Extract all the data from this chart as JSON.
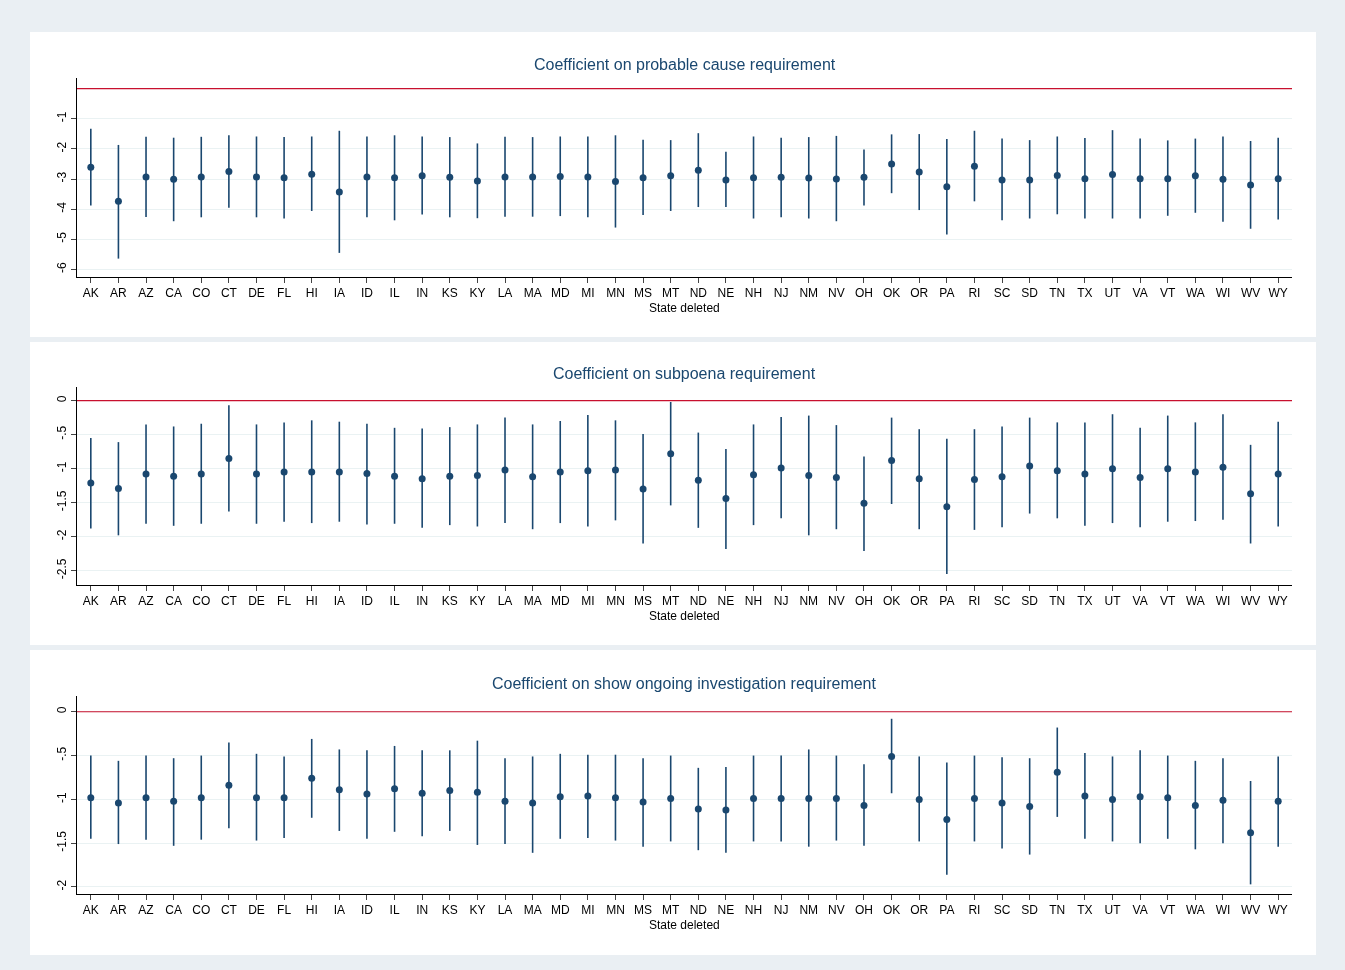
{
  "chart_data": [
    {
      "type": "scatter",
      "title": "Coefficient on probable cause requirement",
      "xlabel": "State deleted",
      "categories": [
        "AK",
        "AR",
        "AZ",
        "CA",
        "CO",
        "CT",
        "DE",
        "FL",
        "HI",
        "IA",
        "ID",
        "IL",
        "IN",
        "KS",
        "KY",
        "LA",
        "MA",
        "MD",
        "MI",
        "MN",
        "MS",
        "MT",
        "ND",
        "NE",
        "NH",
        "NJ",
        "NM",
        "NV",
        "OH",
        "OK",
        "OR",
        "PA",
        "RI",
        "SC",
        "SD",
        "TN",
        "TX",
        "UT",
        "VA",
        "VT",
        "WA",
        "WI",
        "WV",
        "WY"
      ],
      "ylim": [
        -6.25,
        0.35
      ],
      "yticks": [
        -6,
        -5,
        -4,
        -3,
        -2,
        -1
      ],
      "grid": "y",
      "marker": "circle",
      "ref_lines": [
        {
          "axis": "y",
          "value": 0,
          "color": "#c8102e"
        }
      ],
      "series": [
        {
          "color": "#1a476f",
          "values": [
            -2.61,
            -3.74,
            -2.93,
            -3.01,
            -2.93,
            -2.75,
            -2.93,
            -2.96,
            -2.84,
            -3.43,
            -2.93,
            -2.96,
            -2.89,
            -2.94,
            -3.07,
            -2.93,
            -2.93,
            -2.92,
            -2.93,
            -3.08,
            -2.96,
            -2.89,
            -2.71,
            -3.03,
            -2.96,
            -2.94,
            -2.97,
            -3.0,
            -2.94,
            -2.5,
            -2.77,
            -3.26,
            -2.58,
            -3.03,
            -3.03,
            -2.88,
            -2.99,
            -2.85,
            -2.99,
            -2.99,
            -2.89,
            -3.01,
            -3.2,
            -2.99
          ],
          "errors": [
            [
              -3.88,
              -1.33
            ],
            [
              -5.64,
              -1.87
            ],
            [
              -4.26,
              -1.6
            ],
            [
              -4.4,
              -1.63
            ],
            [
              -4.27,
              -1.6
            ],
            [
              -3.95,
              -1.55
            ],
            [
              -4.27,
              -1.59
            ],
            [
              -4.31,
              -1.61
            ],
            [
              -4.06,
              -1.59
            ],
            [
              -5.45,
              -1.4
            ],
            [
              -4.27,
              -1.59
            ],
            [
              -4.37,
              -1.55
            ],
            [
              -4.18,
              -1.59
            ],
            [
              -4.27,
              -1.61
            ],
            [
              -4.3,
              -1.82
            ],
            [
              -4.25,
              -1.6
            ],
            [
              -4.25,
              -1.61
            ],
            [
              -4.23,
              -1.59
            ],
            [
              -4.27,
              -1.59
            ],
            [
              -4.61,
              -1.55
            ],
            [
              -4.19,
              -1.7
            ],
            [
              -4.06,
              -1.71
            ],
            [
              -3.93,
              -1.48
            ],
            [
              -3.93,
              -2.1
            ],
            [
              -4.31,
              -1.59
            ],
            [
              -4.27,
              -1.63
            ],
            [
              -4.31,
              -1.61
            ],
            [
              -4.4,
              -1.57
            ],
            [
              -3.88,
              -2.02
            ],
            [
              -3.47,
              -1.52
            ],
            [
              -4.03,
              -1.51
            ],
            [
              -4.84,
              -1.67
            ],
            [
              -3.74,
              -1.4
            ],
            [
              -4.37,
              -1.66
            ],
            [
              -4.31,
              -1.71
            ],
            [
              -4.17,
              -1.59
            ],
            [
              -4.31,
              -1.64
            ],
            [
              -4.31,
              -1.38
            ],
            [
              -4.31,
              -1.66
            ],
            [
              -4.22,
              -1.72
            ],
            [
              -4.12,
              -1.66
            ],
            [
              -4.42,
              -1.59
            ],
            [
              -4.65,
              -1.74
            ],
            [
              -4.34,
              -1.63
            ]
          ]
        }
      ]
    },
    {
      "type": "scatter",
      "title": "Coefficient on subpoena requirement",
      "xlabel": "State deleted",
      "categories": [
        "AK",
        "AR",
        "AZ",
        "CA",
        "CO",
        "CT",
        "DE",
        "FL",
        "HI",
        "IA",
        "ID",
        "IL",
        "IN",
        "KS",
        "KY",
        "LA",
        "MA",
        "MD",
        "MI",
        "MN",
        "MS",
        "MT",
        "ND",
        "NE",
        "NH",
        "NJ",
        "NM",
        "NV",
        "OH",
        "OK",
        "OR",
        "PA",
        "RI",
        "SC",
        "SD",
        "TN",
        "TX",
        "UT",
        "VA",
        "VT",
        "WA",
        "WI",
        "WV",
        "WY"
      ],
      "ylim": [
        -2.71,
        0.2
      ],
      "yticks": [
        {
          "value": -2.5,
          "label": "-2.5"
        },
        -2,
        {
          "value": -1.5,
          "label": "-1.5"
        },
        -1,
        {
          "value": -0.5,
          "label": "-.5"
        },
        0
      ],
      "grid": "y",
      "marker": "circle",
      "ref_lines": [
        {
          "axis": "y",
          "value": 0,
          "color": "#c8102e"
        }
      ],
      "series": [
        {
          "color": "#1a476f",
          "values": [
            -1.21,
            -1.29,
            -1.08,
            -1.11,
            -1.08,
            -0.85,
            -1.08,
            -1.05,
            -1.05,
            -1.05,
            -1.07,
            -1.11,
            -1.15,
            -1.11,
            -1.1,
            -1.02,
            -1.12,
            -1.05,
            -1.03,
            -1.02,
            -1.3,
            -0.78,
            -1.17,
            -1.44,
            -1.09,
            -0.99,
            -1.1,
            -1.13,
            -1.51,
            -0.88,
            -1.15,
            -1.56,
            -1.16,
            -1.12,
            -0.96,
            -1.03,
            -1.08,
            -1.0,
            -1.13,
            -1.0,
            -1.05,
            -0.98,
            -1.37,
            -1.08
          ],
          "errors": [
            [
              -1.88,
              -0.55
            ],
            [
              -1.98,
              -0.61
            ],
            [
              -1.81,
              -0.35
            ],
            [
              -1.84,
              -0.38
            ],
            [
              -1.81,
              -0.34
            ],
            [
              -1.63,
              -0.07
            ],
            [
              -1.81,
              -0.35
            ],
            [
              -1.78,
              -0.32
            ],
            [
              -1.8,
              -0.29
            ],
            [
              -1.78,
              -0.31
            ],
            [
              -1.82,
              -0.34
            ],
            [
              -1.81,
              -0.4
            ],
            [
              -1.87,
              -0.41
            ],
            [
              -1.83,
              -0.39
            ],
            [
              -1.85,
              -0.35
            ],
            [
              -1.8,
              -0.25
            ],
            [
              -1.89,
              -0.35
            ],
            [
              -1.8,
              -0.3
            ],
            [
              -1.85,
              -0.21
            ],
            [
              -1.76,
              -0.29
            ],
            [
              -2.1,
              -0.49
            ],
            [
              -1.54,
              -0.02
            ],
            [
              -1.87,
              -0.47
            ],
            [
              -2.18,
              -0.71
            ],
            [
              -1.83,
              -0.35
            ],
            [
              -1.73,
              -0.24
            ],
            [
              -1.98,
              -0.22
            ],
            [
              -1.89,
              -0.36
            ],
            [
              -2.21,
              -0.82
            ],
            [
              -1.52,
              -0.25
            ],
            [
              -1.89,
              -0.42
            ],
            [
              -2.55,
              -0.56
            ],
            [
              -1.9,
              -0.42
            ],
            [
              -1.86,
              -0.38
            ],
            [
              -1.66,
              -0.25
            ],
            [
              -1.73,
              -0.32
            ],
            [
              -1.84,
              -0.32
            ],
            [
              -1.8,
              -0.2
            ],
            [
              -1.86,
              -0.4
            ],
            [
              -1.78,
              -0.22
            ],
            [
              -1.77,
              -0.32
            ],
            [
              -1.75,
              -0.2
            ],
            [
              -2.1,
              -0.65
            ],
            [
              -1.85,
              -0.31
            ]
          ]
        }
      ]
    },
    {
      "type": "scatter",
      "title": "Coefficient on show ongoing investigation requirement",
      "xlabel": "State deleted",
      "categories": [
        "AK",
        "AR",
        "AZ",
        "CA",
        "CO",
        "CT",
        "DE",
        "FL",
        "HI",
        "IA",
        "ID",
        "IL",
        "IN",
        "KS",
        "KY",
        "LA",
        "MA",
        "MD",
        "MI",
        "MN",
        "MS",
        "MT",
        "ND",
        "NE",
        "NH",
        "NJ",
        "NM",
        "NV",
        "OH",
        "OK",
        "OR",
        "PA",
        "RI",
        "SC",
        "SD",
        "TN",
        "TX",
        "UT",
        "VA",
        "VT",
        "WA",
        "WI",
        "WV",
        "WY"
      ],
      "ylim": [
        -2.08,
        0.18
      ],
      "yticks": [
        -2,
        {
          "value": -1.5,
          "label": "-1.5"
        },
        -1,
        {
          "value": -0.5,
          "label": "-.5"
        },
        0
      ],
      "grid": "y",
      "marker": "circle",
      "ref_lines": [
        {
          "axis": "y",
          "value": 0,
          "color": "#c8102e"
        }
      ],
      "series": [
        {
          "color": "#1a476f",
          "values": [
            -0.98,
            -1.04,
            -0.98,
            -1.02,
            -0.98,
            -0.84,
            -0.98,
            -0.98,
            -0.76,
            -0.89,
            -0.94,
            -0.88,
            -0.93,
            -0.9,
            -0.92,
            -1.02,
            -1.04,
            -0.97,
            -0.96,
            -0.98,
            -1.03,
            -0.99,
            -1.11,
            -1.12,
            -0.99,
            -0.99,
            -0.99,
            -0.99,
            -1.07,
            -0.51,
            -1.0,
            -1.23,
            -0.99,
            -1.04,
            -1.08,
            -0.69,
            -0.96,
            -1.0,
            -0.97,
            -0.98,
            -1.07,
            -1.01,
            -1.38,
            -1.02
          ],
          "errors": [
            [
              -1.45,
              -0.5
            ],
            [
              -1.51,
              -0.56
            ],
            [
              -1.46,
              -0.5
            ],
            [
              -1.53,
              -0.53
            ],
            [
              -1.46,
              -0.5
            ],
            [
              -1.33,
              -0.35
            ],
            [
              -1.47,
              -0.48
            ],
            [
              -1.44,
              -0.51
            ],
            [
              -1.21,
              -0.31
            ],
            [
              -1.36,
              -0.43
            ],
            [
              -1.45,
              -0.44
            ],
            [
              -1.37,
              -0.39
            ],
            [
              -1.42,
              -0.44
            ],
            [
              -1.36,
              -0.44
            ],
            [
              -1.52,
              -0.33
            ],
            [
              -1.51,
              -0.53
            ],
            [
              -1.61,
              -0.51
            ],
            [
              -1.45,
              -0.48
            ],
            [
              -1.44,
              -0.49
            ],
            [
              -1.47,
              -0.49
            ],
            [
              -1.54,
              -0.53
            ],
            [
              -1.48,
              -0.5
            ],
            [
              -1.58,
              -0.64
            ],
            [
              -1.61,
              -0.63
            ],
            [
              -1.48,
              -0.5
            ],
            [
              -1.48,
              -0.5
            ],
            [
              -1.54,
              -0.43
            ],
            [
              -1.47,
              -0.5
            ],
            [
              -1.53,
              -0.6
            ],
            [
              -0.93,
              -0.08
            ],
            [
              -1.48,
              -0.51
            ],
            [
              -1.86,
              -0.58
            ],
            [
              -1.48,
              -0.5
            ],
            [
              -1.56,
              -0.52
            ],
            [
              -1.63,
              -0.53
            ],
            [
              -1.2,
              -0.18
            ],
            [
              -1.45,
              -0.47
            ],
            [
              -1.48,
              -0.51
            ],
            [
              -1.5,
              -0.44
            ],
            [
              -1.45,
              -0.5
            ],
            [
              -1.57,
              -0.56
            ],
            [
              -1.5,
              -0.53
            ],
            [
              -1.97,
              -0.79
            ],
            [
              -1.54,
              -0.51
            ]
          ]
        }
      ]
    }
  ]
}
